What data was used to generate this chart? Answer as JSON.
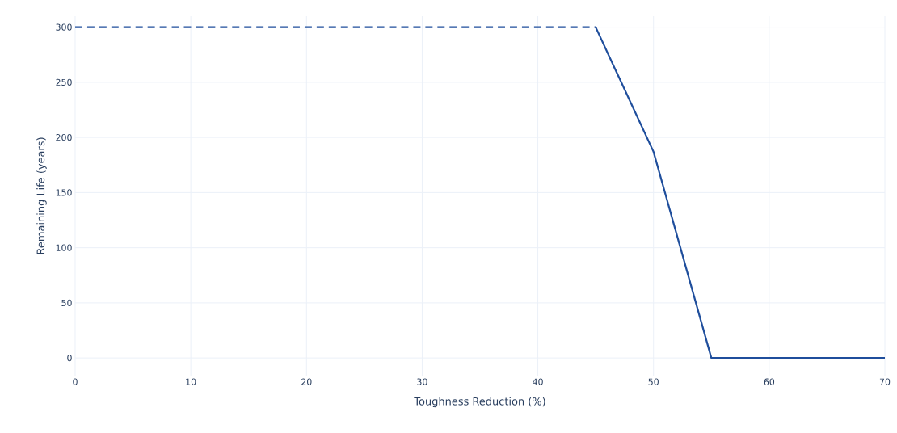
{
  "chart_data": {
    "type": "line",
    "xlabel": "Toughness Reduction (%)",
    "ylabel": "Remaining Life (years)",
    "xlim": [
      0,
      70
    ],
    "ylim": [
      -16,
      310
    ],
    "xticks": [
      0,
      10,
      20,
      30,
      40,
      50,
      60,
      70
    ],
    "yticks": [
      0,
      50,
      100,
      150,
      200,
      250,
      300
    ],
    "grid": true,
    "marker": "none",
    "series": [
      {
        "color": "#1f4e9c",
        "line_style": "dashed",
        "x": [
          0,
          45
        ],
        "values": [
          300,
          300
        ]
      },
      {
        "color": "#1f4e9c",
        "line_style": "solid",
        "x": [
          45,
          50,
          55,
          70
        ],
        "values": [
          300,
          187,
          0,
          0
        ]
      }
    ]
  }
}
